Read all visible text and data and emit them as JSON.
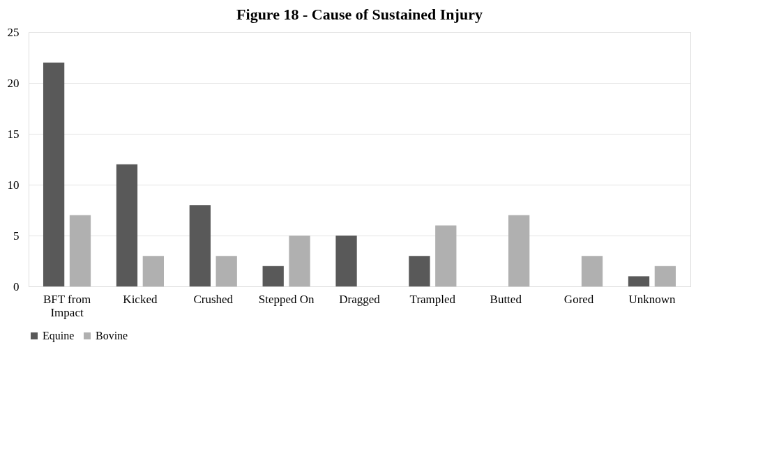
{
  "chart_data": {
    "type": "bar",
    "title": "Figure 18 - Cause of Sustained Injury",
    "categories": [
      "BFT from\nImpact",
      "Kicked",
      "Crushed",
      "Stepped On",
      "Dragged",
      "Trampled",
      "Butted",
      "Gored",
      "Unknown"
    ],
    "series": [
      {
        "name": "Equine",
        "color": "#595959",
        "values": [
          22,
          12,
          8,
          2,
          5,
          3,
          0,
          0,
          1
        ]
      },
      {
        "name": "Bovine",
        "color": "#b0b0b0",
        "values": [
          7,
          3,
          3,
          5,
          0,
          6,
          7,
          3,
          2
        ]
      }
    ],
    "ylim": [
      0,
      25
    ],
    "yticks": [
      0,
      5,
      10,
      15,
      20,
      25
    ],
    "grid": "y",
    "legend": "bottom"
  }
}
